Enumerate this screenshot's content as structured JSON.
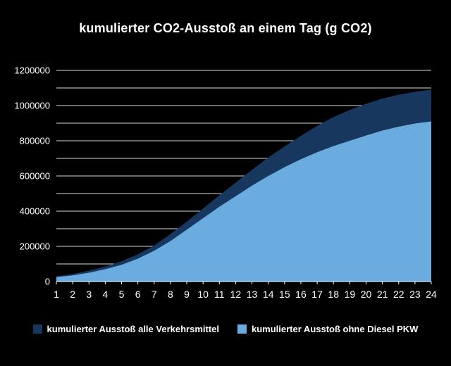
{
  "chart_data": {
    "type": "area",
    "title": "kumulierter CO2-Ausstoß an einem Tag (g CO2)",
    "xlabel": "",
    "ylabel": "",
    "x": [
      1,
      2,
      3,
      4,
      5,
      6,
      7,
      8,
      9,
      10,
      11,
      12,
      13,
      14,
      15,
      16,
      17,
      18,
      19,
      20,
      21,
      22,
      23,
      24
    ],
    "series": [
      {
        "name": "kumulierter Ausstoß alle Verkehrsmittel",
        "color": "#17375e",
        "values": [
          30000,
          43000,
          62000,
          85000,
          115000,
          155000,
          205000,
          270000,
          340000,
          415000,
          490000,
          562000,
          635000,
          705000,
          768000,
          828000,
          885000,
          935000,
          975000,
          1010000,
          1040000,
          1062000,
          1078000,
          1090000
        ]
      },
      {
        "name": "kumulierter Ausstoß ohne Diesel PKW",
        "color": "#6aacdf",
        "values": [
          25000,
          35000,
          50000,
          70000,
          95000,
          130000,
          175000,
          230000,
          295000,
          360000,
          425000,
          485000,
          545000,
          600000,
          650000,
          695000,
          735000,
          770000,
          800000,
          830000,
          858000,
          880000,
          898000,
          910000
        ]
      }
    ],
    "ylim": [
      0,
      1200000
    ],
    "ytick_step": 200000,
    "gridline_step": 100000,
    "grid": true,
    "legend_position": "bottom",
    "background_color": "#000000",
    "text_color": "#ffffff",
    "gridline_color": "#ffffff"
  }
}
